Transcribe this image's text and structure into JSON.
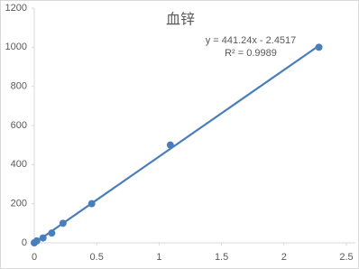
{
  "chart_data": {
    "type": "scatter",
    "title": "血锌",
    "annotations": [
      "y = 441.24x - 2.4517",
      "R² = 0.9989"
    ],
    "x": [
      0,
      0.02,
      0.07,
      0.14,
      0.23,
      0.46,
      1.09,
      2.28
    ],
    "values": [
      0,
      10,
      25,
      50,
      100,
      200,
      500,
      1000
    ],
    "color": "#4a7ebb",
    "trendline": true,
    "xlim": [
      0,
      2.5
    ],
    "xticks": [
      0,
      0.5,
      1,
      1.5,
      2,
      2.5
    ],
    "ylim": [
      0,
      1200
    ],
    "yticks": [
      0,
      200,
      400,
      600,
      800,
      1000,
      1200
    ],
    "grid": false
  }
}
